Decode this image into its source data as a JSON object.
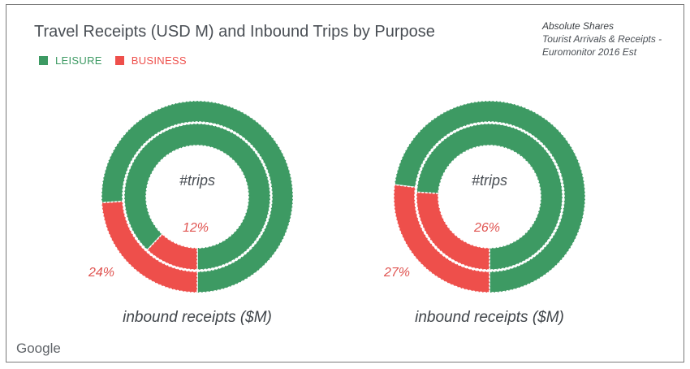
{
  "title": "Travel Receipts (USD M) and Inbound Trips by Purpose",
  "legend": [
    {
      "label": "LEISURE",
      "color": "#3d9a63"
    },
    {
      "label": "BUSINESS",
      "color": "#ee4f4b"
    }
  ],
  "note": {
    "heading": "Absolute Shares",
    "line1": "Tourist Arrivals & Receipts -",
    "line2": "Euromonitor 2016 Est"
  },
  "brand": "Google",
  "colors": {
    "leisure": "#3d9a63",
    "business": "#ee4f4b",
    "label_red": "#e05552",
    "center_text": "#4a4f55"
  },
  "chart_data": [
    {
      "type": "pie",
      "style": "nested-donut",
      "center_label": "#trips",
      "bottom_label": "inbound receipts ($M)",
      "outer_ring": {
        "name": "inbound receipts ($M)",
        "categories": [
          "LEISURE",
          "BUSINESS"
        ],
        "values": [
          76,
          24
        ],
        "shown_label": "24%"
      },
      "inner_ring": {
        "name": "#trips",
        "categories": [
          "LEISURE",
          "BUSINESS"
        ],
        "values": [
          88,
          12
        ],
        "shown_label": "12%"
      }
    },
    {
      "type": "pie",
      "style": "nested-donut",
      "center_label": "#trips",
      "bottom_label": "inbound receipts ($M)",
      "outer_ring": {
        "name": "inbound receipts ($M)",
        "categories": [
          "LEISURE",
          "BUSINESS"
        ],
        "values": [
          73,
          27
        ],
        "shown_label": "27%"
      },
      "inner_ring": {
        "name": "#trips",
        "categories": [
          "LEISURE",
          "BUSINESS"
        ],
        "values": [
          74,
          26
        ],
        "shown_label": "26%"
      }
    }
  ]
}
